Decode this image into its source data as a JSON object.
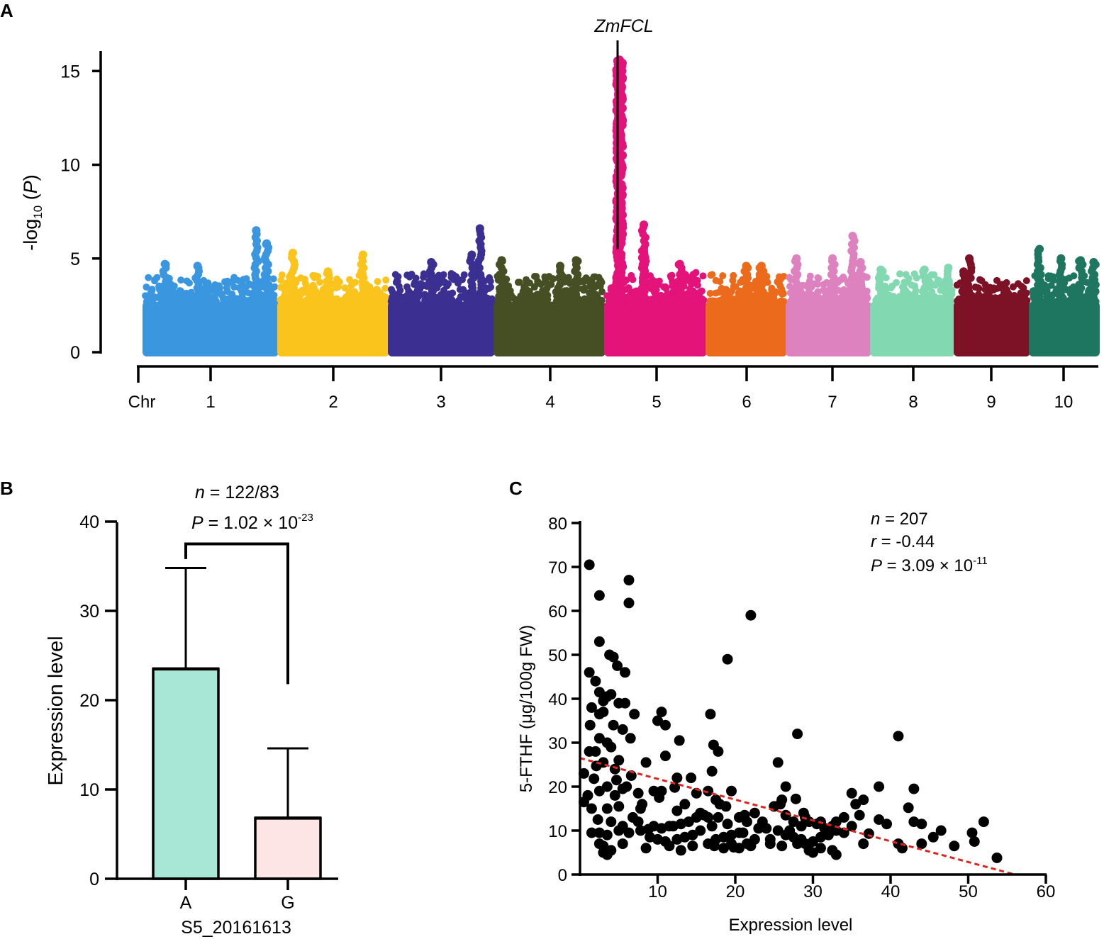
{
  "panels": {
    "a": "A",
    "b": "B",
    "c": "C"
  },
  "chart_data": [
    {
      "type": "scatter",
      "subtype": "manhattan",
      "ylabel_main": "-log",
      "ylabel_sub": "10",
      "ylabel_tail": " (P)",
      "ylim": [
        0,
        16
      ],
      "yticks": [
        0,
        5,
        10,
        15
      ],
      "xlabel_prefix": "Chr",
      "chromosomes": [
        {
          "label": "1",
          "color": "#3b96e0",
          "base_max": 4.0,
          "peaks": [
            {
              "pos": 0.85,
              "y": 6.5
            },
            {
              "pos": 0.93,
              "y": 5.8
            },
            {
              "pos": 0.4,
              "y": 4.6
            },
            {
              "pos": 0.15,
              "y": 4.7
            }
          ]
        },
        {
          "label": "2",
          "color": "#fbc41d",
          "base_max": 4.2,
          "peaks": [
            {
              "pos": 0.12,
              "y": 5.3
            },
            {
              "pos": 0.78,
              "y": 5.2
            },
            {
              "pos": 0.45,
              "y": 4.3
            }
          ]
        },
        {
          "label": "3",
          "color": "#3b2f92",
          "base_max": 4.2,
          "peaks": [
            {
              "pos": 0.88,
              "y": 6.6
            },
            {
              "pos": 0.8,
              "y": 5.2
            },
            {
              "pos": 0.4,
              "y": 4.8
            }
          ]
        },
        {
          "label": "4",
          "color": "#464e24",
          "base_max": 4.1,
          "peaks": [
            {
              "pos": 0.05,
              "y": 4.9
            },
            {
              "pos": 0.75,
              "y": 4.9
            },
            {
              "pos": 0.6,
              "y": 4.6
            }
          ]
        },
        {
          "label": "5",
          "color": "#e3137a",
          "base_max": 4.3,
          "peaks": [
            {
              "pos": 0.13,
              "y": 15.6
            },
            {
              "pos": 0.38,
              "y": 6.8
            },
            {
              "pos": 0.38,
              "y": 5.4
            },
            {
              "pos": 0.75,
              "y": 4.7
            }
          ]
        },
        {
          "label": "6",
          "color": "#ec6a1b",
          "base_max": 4.2,
          "peaks": [
            {
              "pos": 0.5,
              "y": 4.6
            },
            {
              "pos": 0.7,
              "y": 4.6
            }
          ]
        },
        {
          "label": "7",
          "color": "#dd82bf",
          "base_max": 4.1,
          "peaks": [
            {
              "pos": 0.1,
              "y": 5.0
            },
            {
              "pos": 0.55,
              "y": 5.0
            },
            {
              "pos": 0.8,
              "y": 6.2
            },
            {
              "pos": 0.9,
              "y": 4.8
            }
          ]
        },
        {
          "label": "8",
          "color": "#82d9b1",
          "base_max": 4.2,
          "peaks": [
            {
              "pos": 0.1,
              "y": 4.4
            },
            {
              "pos": 0.65,
              "y": 4.4
            },
            {
              "pos": 0.95,
              "y": 4.5
            }
          ]
        },
        {
          "label": "9",
          "color": "#7d1226",
          "base_max": 3.9,
          "peaks": [
            {
              "pos": 0.18,
              "y": 5.0
            },
            {
              "pos": 0.1,
              "y": 4.3
            }
          ]
        },
        {
          "label": "10",
          "color": "#1e7660",
          "base_max": 4.1,
          "peaks": [
            {
              "pos": 0.12,
              "y": 5.5
            },
            {
              "pos": 0.45,
              "y": 5.0
            },
            {
              "pos": 0.75,
              "y": 4.9
            },
            {
              "pos": 0.95,
              "y": 4.8
            }
          ]
        }
      ],
      "annotation": "ZmFCL",
      "annotation_chr": "5",
      "annotation_y": 5.5
    },
    {
      "type": "bar",
      "categories": [
        "A",
        "G"
      ],
      "values": [
        23.5,
        6.8
      ],
      "errors": [
        11.3,
        7.8
      ],
      "colors": [
        "#a8e6d5",
        "#fde4e5"
      ],
      "xlabel": "S5_20161613",
      "ylabel": "Expression level",
      "ylim": [
        0,
        40
      ],
      "yticks": [
        0,
        10,
        20,
        30,
        40
      ],
      "bracket_y": 37.5,
      "bracket_left_y": 35.8,
      "bracket_right_y": 21.8,
      "n_label": "n",
      "n_value": " = 122/83",
      "p_label": "P",
      "p_value": " = 1.02 × 10",
      "p_exp": "-23"
    },
    {
      "type": "scatter",
      "xlabel": "Expression level",
      "ylabel": "5-FTHF (μg/100g FW)",
      "xlim": [
        0,
        60
      ],
      "ylim": [
        0,
        80
      ],
      "xticks": [
        10,
        20,
        30,
        40,
        50,
        60
      ],
      "yticks": [
        0,
        10,
        20,
        30,
        40,
        50,
        60,
        70,
        80
      ],
      "trendline": {
        "x": [
          0,
          56
        ],
        "y": [
          26.5,
          0
        ],
        "color": "#e2221d"
      },
      "n_label": "n",
      "n_value": " = 207",
      "r_label": "r",
      "r_value": " = -0.44",
      "p_label": "P",
      "p_value": " = 3.09 × 10",
      "p_exp": "-11",
      "points": [
        [
          1.2,
          70.5
        ],
        [
          6.3,
          67
        ],
        [
          6.3,
          61.8
        ],
        [
          2.5,
          63.5
        ],
        [
          22,
          59
        ],
        [
          19,
          49
        ],
        [
          2.5,
          53
        ],
        [
          1.2,
          46
        ],
        [
          3.8,
          50
        ],
        [
          4.3,
          49.5
        ],
        [
          4.8,
          47.5
        ],
        [
          5.8,
          46
        ],
        [
          2,
          44
        ],
        [
          2.5,
          41.5
        ],
        [
          3,
          39.5
        ],
        [
          4,
          41
        ],
        [
          3.5,
          40.5
        ],
        [
          5,
          39
        ],
        [
          5.8,
          39
        ],
        [
          1.5,
          38
        ],
        [
          2.5,
          36.5
        ],
        [
          3,
          37
        ],
        [
          7,
          36.5
        ],
        [
          10.5,
          37
        ],
        [
          10,
          35
        ],
        [
          16.8,
          36.5
        ],
        [
          1.3,
          34
        ],
        [
          4.3,
          34
        ],
        [
          5.5,
          33
        ],
        [
          6.5,
          31
        ],
        [
          11,
          34
        ],
        [
          12.8,
          30.5
        ],
        [
          28,
          32
        ],
        [
          41,
          31.5
        ],
        [
          2.5,
          31
        ],
        [
          3.5,
          30
        ],
        [
          1.2,
          28
        ],
        [
          2,
          28
        ],
        [
          4,
          29
        ],
        [
          5,
          26
        ],
        [
          17.2,
          29.5
        ],
        [
          17.8,
          28
        ],
        [
          11,
          27
        ],
        [
          3,
          25.5
        ],
        [
          4.5,
          24
        ],
        [
          8.5,
          25.5
        ],
        [
          12.5,
          22
        ],
        [
          14.3,
          22
        ],
        [
          17,
          23.5
        ],
        [
          25.5,
          25.5
        ],
        [
          0.5,
          23
        ],
        [
          1,
          18
        ],
        [
          2.5,
          19
        ],
        [
          3.5,
          20
        ],
        [
          4.5,
          18
        ],
        [
          5.5,
          19.5
        ],
        [
          6,
          20
        ],
        [
          7.5,
          18.5
        ],
        [
          9.5,
          19
        ],
        [
          10.5,
          19
        ],
        [
          15,
          18.5
        ],
        [
          16.5,
          19
        ],
        [
          17.5,
          17
        ],
        [
          19.5,
          19
        ],
        [
          26.5,
          20
        ],
        [
          35,
          18.5
        ],
        [
          36.5,
          17
        ],
        [
          38.5,
          20
        ],
        [
          43,
          19.5
        ],
        [
          0.5,
          16.5
        ],
        [
          1.5,
          15
        ],
        [
          3.5,
          15
        ],
        [
          5,
          15.5
        ],
        [
          7.8,
          15
        ],
        [
          12.5,
          14.5
        ],
        [
          16,
          13.5
        ],
        [
          18,
          16
        ],
        [
          26,
          17
        ],
        [
          29,
          13
        ],
        [
          31,
          12
        ],
        [
          33,
          12
        ],
        [
          35.5,
          16
        ],
        [
          2.3,
          12.5
        ],
        [
          4,
          12
        ],
        [
          5.5,
          11
        ],
        [
          7.5,
          12
        ],
        [
          9.5,
          11
        ],
        [
          10.5,
          10.5
        ],
        [
          11.5,
          11
        ],
        [
          12,
          11
        ],
        [
          13,
          11.5
        ],
        [
          14,
          12
        ],
        [
          15,
          13
        ],
        [
          16.5,
          13
        ],
        [
          17.8,
          13
        ],
        [
          19,
          11.5
        ],
        [
          20.5,
          13
        ],
        [
          21.5,
          12
        ],
        [
          22.5,
          14
        ],
        [
          24,
          10.5
        ],
        [
          25,
          15.5
        ],
        [
          25.8,
          16
        ],
        [
          26.5,
          13.5
        ],
        [
          27.5,
          12
        ],
        [
          28.5,
          11
        ],
        [
          29.5,
          12
        ],
        [
          30.5,
          11.5
        ],
        [
          31.5,
          10.5
        ],
        [
          32.5,
          11
        ],
        [
          34,
          13
        ],
        [
          35,
          11
        ],
        [
          38.5,
          12.5
        ],
        [
          39.5,
          11.5
        ],
        [
          43,
          12
        ],
        [
          44,
          11.5
        ],
        [
          46.5,
          10
        ],
        [
          50.5,
          9.5
        ],
        [
          52,
          12
        ],
        [
          1.5,
          9.5
        ],
        [
          2.5,
          9.5
        ],
        [
          3.5,
          9
        ],
        [
          5,
          10
        ],
        [
          6.3,
          9.5
        ],
        [
          7.8,
          10
        ],
        [
          9,
          8.5
        ],
        [
          10,
          8
        ],
        [
          11,
          7.5
        ],
        [
          12.5,
          8
        ],
        [
          13.5,
          8.5
        ],
        [
          14.5,
          9
        ],
        [
          15.5,
          10
        ],
        [
          16.5,
          7
        ],
        [
          17.5,
          8
        ],
        [
          18.5,
          8.5
        ],
        [
          19.5,
          9
        ],
        [
          20.5,
          9.5
        ],
        [
          21.5,
          7
        ],
        [
          22.5,
          8
        ],
        [
          23,
          10.5
        ],
        [
          24.5,
          8
        ],
        [
          25.5,
          10
        ],
        [
          26.5,
          9
        ],
        [
          27.5,
          8.5
        ],
        [
          28.5,
          8
        ],
        [
          29,
          7
        ],
        [
          30,
          7.5
        ],
        [
          31,
          8.5
        ],
        [
          32,
          9
        ],
        [
          33,
          10
        ],
        [
          34,
          9.5
        ],
        [
          2.5,
          7
        ],
        [
          3,
          6.5
        ],
        [
          4,
          5.5
        ],
        [
          5.5,
          7
        ],
        [
          8.5,
          6
        ],
        [
          11.5,
          6.5
        ],
        [
          13,
          5.5
        ],
        [
          14.5,
          6.5
        ],
        [
          17.3,
          6.5
        ],
        [
          18.5,
          6
        ],
        [
          19.5,
          7
        ],
        [
          20.5,
          6
        ],
        [
          22,
          6.5
        ],
        [
          24.5,
          7
        ],
        [
          26,
          6.5
        ],
        [
          28,
          7
        ],
        [
          29.5,
          5.5
        ],
        [
          31,
          6
        ],
        [
          32.5,
          5.5
        ],
        [
          36.5,
          7
        ],
        [
          41,
          7
        ],
        [
          41.5,
          6
        ],
        [
          44,
          7
        ],
        [
          45.5,
          8.5
        ],
        [
          50.8,
          7.5
        ],
        [
          53.7,
          3.8
        ],
        [
          3,
          5
        ],
        [
          3.5,
          4.5
        ],
        [
          30,
          5
        ],
        [
          33,
          4.5
        ],
        [
          17,
          11
        ],
        [
          21,
          9.5
        ],
        [
          27,
          10
        ],
        [
          6.8,
          13
        ],
        [
          8,
          16
        ],
        [
          13.5,
          16
        ],
        [
          15.5,
          14
        ],
        [
          23.5,
          12
        ],
        [
          28.8,
          14
        ],
        [
          36,
          13.5
        ],
        [
          19.8,
          6.2
        ],
        [
          21.2,
          13.5
        ],
        [
          10.2,
          17.5
        ],
        [
          8.8,
          10.3
        ],
        [
          4.7,
          21.5
        ],
        [
          6.6,
          22.5
        ],
        [
          18.8,
          15.5
        ],
        [
          12.2,
          19.8
        ],
        [
          27.8,
          17.2
        ],
        [
          37.2,
          9.3
        ],
        [
          42.3,
          15.2
        ],
        [
          48.2,
          6.5
        ],
        [
          1.8,
          21.8
        ],
        [
          2.1,
          24.7
        ]
      ]
    }
  ]
}
